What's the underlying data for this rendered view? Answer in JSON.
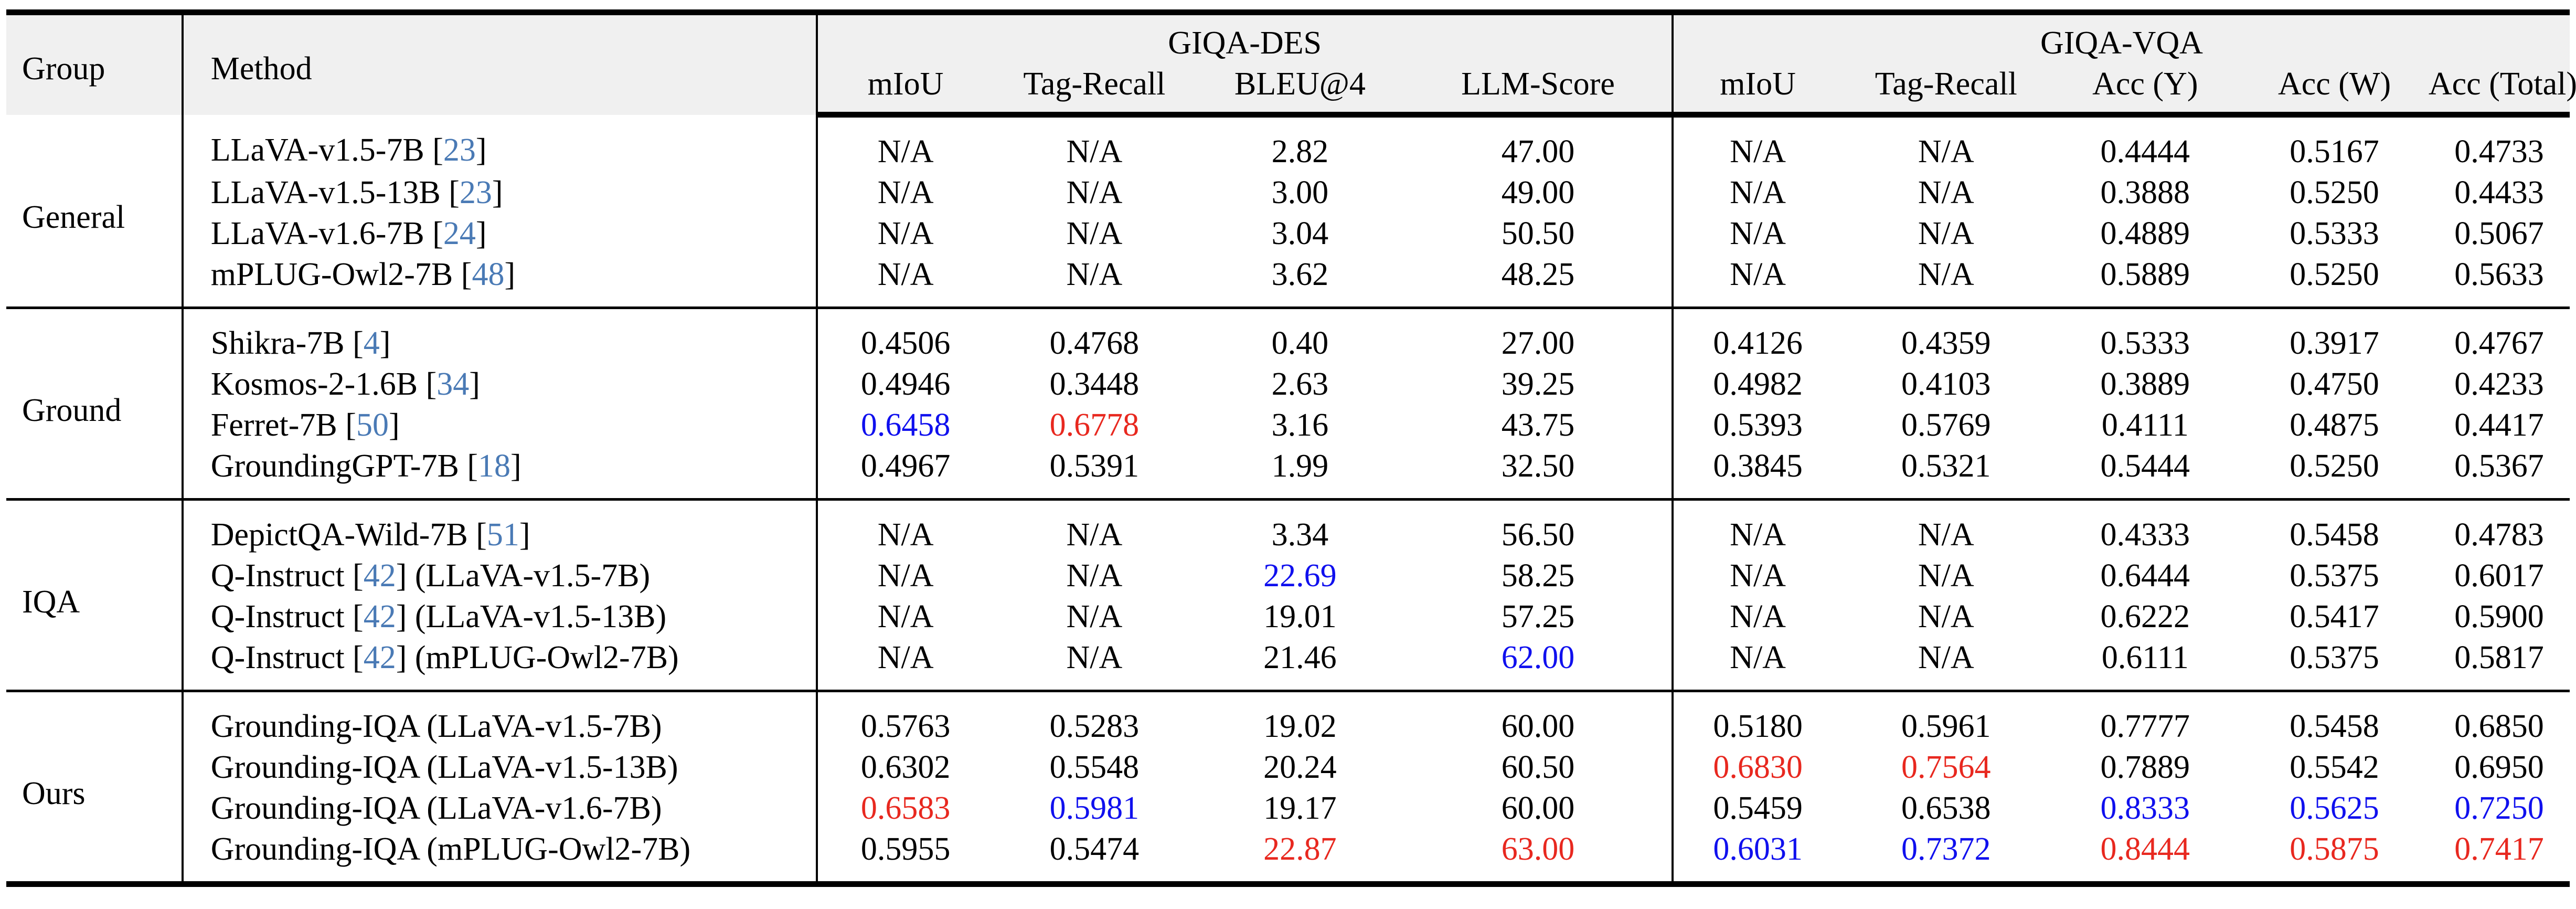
{
  "header": {
    "group": "Group",
    "method": "Method",
    "giqa_des": "GIQA-DES",
    "giqa_vqa": "GIQA-VQA",
    "des_cols": [
      "mIoU",
      "Tag-Recall",
      "BLEU@4",
      "LLM-Score"
    ],
    "vqa_cols": [
      "mIoU",
      "Tag-Recall",
      "Acc (Y)",
      "Acc (W)",
      "Acc (Total)"
    ]
  },
  "highlight_colors": {
    "best": "#e8281f",
    "second": "#1010ee",
    "citation": "#4a7ab5"
  },
  "sections": [
    {
      "group": "General",
      "rows": [
        {
          "method": "LLaVA-v1.5-7B",
          "ref": "23",
          "suffix": "",
          "values": [
            "N/A",
            "N/A",
            "2.82",
            "47.00",
            "N/A",
            "N/A",
            "0.4444",
            "0.5167",
            "0.4733"
          ],
          "colors": [
            "",
            "",
            "",
            "",
            "",
            "",
            "",
            "",
            ""
          ]
        },
        {
          "method": "LLaVA-v1.5-13B",
          "ref": "23",
          "suffix": "",
          "values": [
            "N/A",
            "N/A",
            "3.00",
            "49.00",
            "N/A",
            "N/A",
            "0.3888",
            "0.5250",
            "0.4433"
          ],
          "colors": [
            "",
            "",
            "",
            "",
            "",
            "",
            "",
            "",
            ""
          ]
        },
        {
          "method": "LLaVA-v1.6-7B",
          "ref": "24",
          "suffix": "",
          "values": [
            "N/A",
            "N/A",
            "3.04",
            "50.50",
            "N/A",
            "N/A",
            "0.4889",
            "0.5333",
            "0.5067"
          ],
          "colors": [
            "",
            "",
            "",
            "",
            "",
            "",
            "",
            "",
            ""
          ]
        },
        {
          "method": "mPLUG-Owl2-7B",
          "ref": "48",
          "suffix": "",
          "values": [
            "N/A",
            "N/A",
            "3.62",
            "48.25",
            "N/A",
            "N/A",
            "0.5889",
            "0.5250",
            "0.5633"
          ],
          "colors": [
            "",
            "",
            "",
            "",
            "",
            "",
            "",
            "",
            ""
          ]
        }
      ]
    },
    {
      "group": "Ground",
      "rows": [
        {
          "method": "Shikra-7B",
          "ref": "4",
          "suffix": "",
          "values": [
            "0.4506",
            "0.4768",
            "0.40",
            "27.00",
            "0.4126",
            "0.4359",
            "0.5333",
            "0.3917",
            "0.4767"
          ],
          "colors": [
            "",
            "",
            "",
            "",
            "",
            "",
            "",
            "",
            ""
          ]
        },
        {
          "method": "Kosmos-2-1.6B",
          "ref": "34",
          "suffix": "",
          "values": [
            "0.4946",
            "0.3448",
            "2.63",
            "39.25",
            "0.4982",
            "0.4103",
            "0.3889",
            "0.4750",
            "0.4233"
          ],
          "colors": [
            "",
            "",
            "",
            "",
            "",
            "",
            "",
            "",
            ""
          ]
        },
        {
          "method": "Ferret-7B",
          "ref": "50",
          "suffix": "",
          "values": [
            "0.6458",
            "0.6778",
            "3.16",
            "43.75",
            "0.5393",
            "0.5769",
            "0.4111",
            "0.4875",
            "0.4417"
          ],
          "colors": [
            "blue",
            "red",
            "",
            "",
            "",
            "",
            "",
            "",
            ""
          ]
        },
        {
          "method": "GroundingGPT-7B",
          "ref": "18",
          "suffix": "",
          "values": [
            "0.4967",
            "0.5391",
            "1.99",
            "32.50",
            "0.3845",
            "0.5321",
            "0.5444",
            "0.5250",
            "0.5367"
          ],
          "colors": [
            "",
            "",
            "",
            "",
            "",
            "",
            "",
            "",
            ""
          ]
        }
      ]
    },
    {
      "group": "IQA",
      "rows": [
        {
          "method": "DepictQA-Wild-7B",
          "ref": "51",
          "suffix": "",
          "values": [
            "N/A",
            "N/A",
            "3.34",
            "56.50",
            "N/A",
            "N/A",
            "0.4333",
            "0.5458",
            "0.4783"
          ],
          "colors": [
            "",
            "",
            "",
            "",
            "",
            "",
            "",
            "",
            ""
          ]
        },
        {
          "method": "Q-Instruct",
          "ref": "42",
          "suffix": " (LLaVA-v1.5-7B)",
          "values": [
            "N/A",
            "N/A",
            "22.69",
            "58.25",
            "N/A",
            "N/A",
            "0.6444",
            "0.5375",
            "0.6017"
          ],
          "colors": [
            "",
            "",
            "blue",
            "",
            "",
            "",
            "",
            "",
            ""
          ]
        },
        {
          "method": "Q-Instruct",
          "ref": "42",
          "suffix": " (LLaVA-v1.5-13B)",
          "values": [
            "N/A",
            "N/A",
            "19.01",
            "57.25",
            "N/A",
            "N/A",
            "0.6222",
            "0.5417",
            "0.5900"
          ],
          "colors": [
            "",
            "",
            "",
            "",
            "",
            "",
            "",
            "",
            ""
          ]
        },
        {
          "method": "Q-Instruct",
          "ref": "42",
          "suffix": " (mPLUG-Owl2-7B)",
          "values": [
            "N/A",
            "N/A",
            "21.46",
            "62.00",
            "N/A",
            "N/A",
            "0.6111",
            "0.5375",
            "0.5817"
          ],
          "colors": [
            "",
            "",
            "",
            "blue",
            "",
            "",
            "",
            "",
            ""
          ]
        }
      ]
    },
    {
      "group": "Ours",
      "rows": [
        {
          "method": "Grounding-IQA (LLaVA-v1.5-7B)",
          "ref": "",
          "suffix": "",
          "values": [
            "0.5763",
            "0.5283",
            "19.02",
            "60.00",
            "0.5180",
            "0.5961",
            "0.7777",
            "0.5458",
            "0.6850"
          ],
          "colors": [
            "",
            "",
            "",
            "",
            "",
            "",
            "",
            "",
            ""
          ]
        },
        {
          "method": "Grounding-IQA (LLaVA-v1.5-13B)",
          "ref": "",
          "suffix": "",
          "values": [
            "0.6302",
            "0.5548",
            "20.24",
            "60.50",
            "0.6830",
            "0.7564",
            "0.7889",
            "0.5542",
            "0.6950"
          ],
          "colors": [
            "",
            "",
            "",
            "",
            "red",
            "red",
            "",
            "",
            ""
          ]
        },
        {
          "method": "Grounding-IQA (LLaVA-v1.6-7B)",
          "ref": "",
          "suffix": "",
          "values": [
            "0.6583",
            "0.5981",
            "19.17",
            "60.00",
            "0.5459",
            "0.6538",
            "0.8333",
            "0.5625",
            "0.7250"
          ],
          "colors": [
            "red",
            "blue",
            "",
            "",
            "",
            "",
            "blue",
            "blue",
            "blue"
          ]
        },
        {
          "method": "Grounding-IQA (mPLUG-Owl2-7B)",
          "ref": "",
          "suffix": "",
          "values": [
            "0.5955",
            "0.5474",
            "22.87",
            "63.00",
            "0.6031",
            "0.7372",
            "0.8444",
            "0.5875",
            "0.7417"
          ],
          "colors": [
            "",
            "",
            "red",
            "red",
            "blue",
            "blue",
            "red",
            "red",
            "red"
          ]
        }
      ]
    }
  ]
}
